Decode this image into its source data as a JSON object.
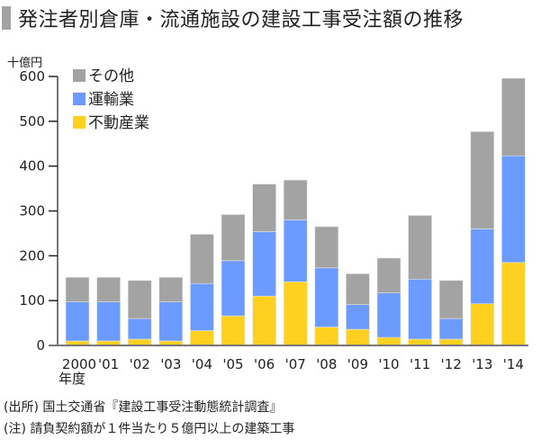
{
  "title": "発注者別倉庫・流通施設の建設工事受注額の推移",
  "chart_data": {
    "type": "bar",
    "stacked": true,
    "title": "発注者別倉庫・流通施設の建設工事受注額の推移",
    "ylabel": "十億円",
    "xlabel": "年度",
    "ylim": [
      0,
      600
    ],
    "yticks": [
      0,
      100,
      200,
      300,
      400,
      500,
      600
    ],
    "grid": false,
    "legend_position": "top-left",
    "categories": [
      "2000",
      "'01",
      "'02",
      "'03",
      "'04",
      "'05",
      "'06",
      "'07",
      "'08",
      "'09",
      "'10",
      "'11",
      "'12",
      "'13",
      "'14"
    ],
    "category_sublabel": "年度",
    "series": [
      {
        "name": "不動産業",
        "color": "#ffd020",
        "values": [
          10,
          10,
          14,
          10,
          33,
          66,
          110,
          142,
          41,
          36,
          18,
          14,
          14,
          93,
          185
        ]
      },
      {
        "name": "運輸業",
        "color": "#6b9bff",
        "values": [
          87,
          87,
          46,
          87,
          105,
          123,
          144,
          138,
          132,
          55,
          99,
          134,
          46,
          167,
          238
        ]
      },
      {
        "name": "その他",
        "color": "#a3a3a3",
        "values": [
          55,
          55,
          85,
          55,
          110,
          103,
          106,
          89,
          92,
          69,
          78,
          142,
          85,
          217,
          173
        ]
      }
    ],
    "legend_order": [
      "その他",
      "運輸業",
      "不動産業"
    ]
  },
  "footer": {
    "source": "(出所) 国土交通省『建設工事受注動態統計調査』",
    "note": "(注) 請負契約額が１件当たり５億円以上の建築工事"
  }
}
